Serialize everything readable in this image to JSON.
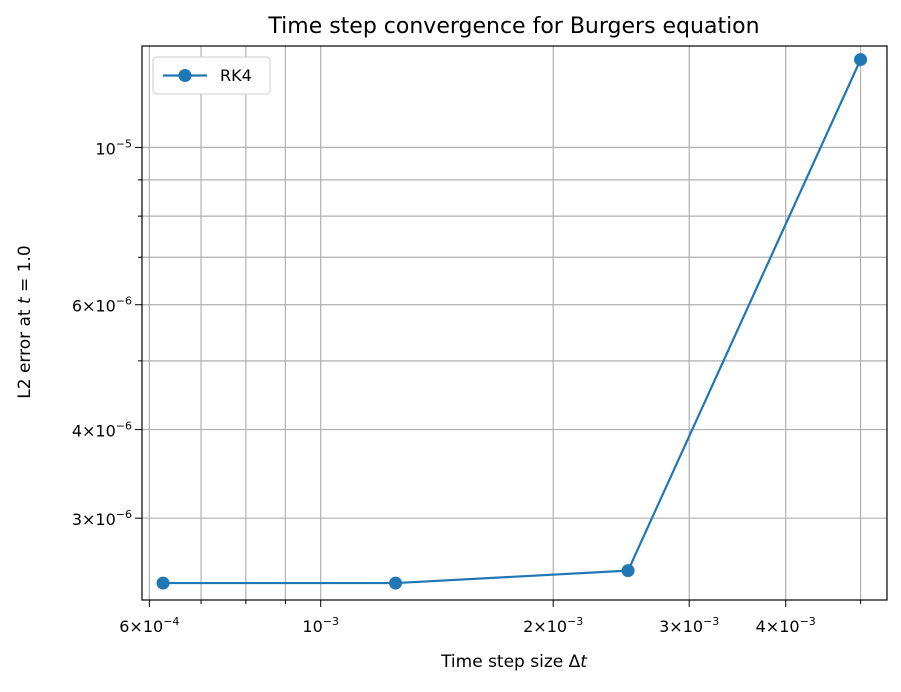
{
  "chart_data": {
    "type": "line",
    "title": "Time step convergence for Burgers equation",
    "xlabel": "Time step size Δt",
    "ylabel": "L2 error at t = 1.0",
    "xscale": "log",
    "yscale": "log",
    "xlim": [
      0.000587,
      0.00541
    ],
    "ylim": [
      2.3e-06,
      1.39e-05
    ],
    "grid": true,
    "grid_minor": true,
    "legend_position": "top-left",
    "series": [
      {
        "name": "RK4",
        "color": "#1f77b4",
        "marker": "circle",
        "x": [
          0.000625,
          0.00125,
          0.0025,
          0.005
        ],
        "y": [
          2.43e-06,
          2.43e-06,
          2.53e-06,
          1.33e-05
        ]
      }
    ],
    "x_ticks": [
      {
        "value": 0.0006,
        "mantissa": "6",
        "times": "×",
        "base": "10",
        "exp": "−4"
      },
      {
        "value": 0.001,
        "mantissa": "",
        "times": "",
        "base": "10",
        "exp": "−3"
      },
      {
        "value": 0.002,
        "mantissa": "2",
        "times": "×",
        "base": "10",
        "exp": "−3"
      },
      {
        "value": 0.003,
        "mantissa": "3",
        "times": "×",
        "base": "10",
        "exp": "−3"
      },
      {
        "value": 0.004,
        "mantissa": "4",
        "times": "×",
        "base": "10",
        "exp": "−3"
      }
    ],
    "x_minor": [
      0.0007,
      0.0008,
      0.0009,
      0.005
    ],
    "y_ticks": [
      {
        "value": 1e-05,
        "mantissa": "",
        "times": "",
        "base": "10",
        "exp": "−5"
      },
      {
        "value": 6e-06,
        "mantissa": "6",
        "times": "×",
        "base": "10",
        "exp": "−6"
      },
      {
        "value": 4e-06,
        "mantissa": "4",
        "times": "×",
        "base": "10",
        "exp": "−6"
      },
      {
        "value": 3e-06,
        "mantissa": "3",
        "times": "×",
        "base": "10",
        "exp": "−6"
      }
    ],
    "y_minor": [
      5e-06,
      7e-06,
      8e-06,
      9e-06
    ]
  }
}
